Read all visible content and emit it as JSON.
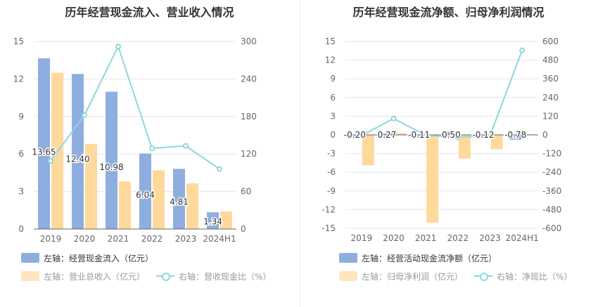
{
  "colors": {
    "bar1": "#8eaee0",
    "bar2": "#ffd99b",
    "line": "#8ed7dc",
    "axis_text": "#666666",
    "grid": "#e6e6e6"
  },
  "left": {
    "title": "历年经营现金流入、营业收入情况",
    "legend": {
      "bar1": "左轴：经营现金流入（亿元）",
      "bar2": "左轴：营业总收入（亿元）",
      "line": "右轴：营收现金比（%）"
    }
  },
  "right": {
    "title": "历年经营现金流净额、归母净利润情况",
    "legend": {
      "bar1": "左轴：经营活动现金流净额（亿元）",
      "bar2": "左轴：归母净利润（亿元）",
      "line": "右轴：净现比（%）"
    }
  },
  "chart_data": [
    {
      "type": "bar",
      "title": "历年经营现金流入、营业收入情况",
      "categories": [
        "2019",
        "2020",
        "2021",
        "2022",
        "2023",
        "2024H1"
      ],
      "left_axis": {
        "ylim": [
          0,
          15
        ],
        "ticks": [
          "0",
          "3",
          "6",
          "9",
          "12",
          "15"
        ]
      },
      "right_axis": {
        "ylim": [
          0,
          300
        ],
        "ticks": [
          "0",
          "60",
          "120",
          "180",
          "240",
          "300"
        ]
      },
      "series": [
        {
          "name": "左轴：经营现金流入（亿元）",
          "axis": "left",
          "values": [
            13.65,
            12.4,
            10.98,
            6.04,
            4.81,
            1.34
          ],
          "labels": [
            "13.65",
            "12.40",
            "10.98",
            "6.04",
            "4.81",
            "1.34"
          ]
        },
        {
          "name": "左轴：营业总收入（亿元）",
          "axis": "left",
          "values": [
            12.5,
            6.8,
            3.8,
            4.7,
            3.65,
            1.4
          ]
        },
        {
          "name": "右轴：营收现金比（%）",
          "axis": "right",
          "type": "line",
          "values": [
            109,
            182,
            292,
            129,
            133,
            96
          ]
        }
      ],
      "grid": true
    },
    {
      "type": "bar",
      "title": "历年经营现金流净额、归母净利润情况",
      "categories": [
        "2019",
        "2020",
        "2021",
        "2022",
        "2023",
        "2024H1"
      ],
      "left_axis": {
        "ylim": [
          -15,
          15
        ],
        "ticks": [
          "-15",
          "-12",
          "-9",
          "-6",
          "-3",
          "0",
          "3",
          "6",
          "9",
          "12",
          "15"
        ]
      },
      "right_axis": {
        "ylim": [
          -600,
          600
        ],
        "ticks": [
          "-600",
          "-480",
          "-360",
          "-240",
          "-120",
          "0",
          "120",
          "240",
          "360",
          "480",
          "600"
        ]
      },
      "series": [
        {
          "name": "左轴：经营活动现金流净额（亿元）",
          "axis": "left",
          "values": [
            -0.2,
            0.27,
            -0.11,
            0.5,
            -0.12,
            -0.78
          ],
          "labels": [
            "-0.20",
            "0.27",
            "-0.11",
            "0.50",
            "-0.12",
            "-0.78"
          ]
        },
        {
          "name": "左轴：归母净利润（亿元）",
          "axis": "left",
          "values": [
            -4.9,
            0.25,
            -14.1,
            -3.8,
            -2.3,
            0.1
          ]
        },
        {
          "name": "右轴：净现比（%）",
          "axis": "right",
          "type": "line",
          "values": [
            -5,
            105,
            -3,
            -15,
            -5,
            543
          ]
        }
      ],
      "grid": true
    }
  ]
}
